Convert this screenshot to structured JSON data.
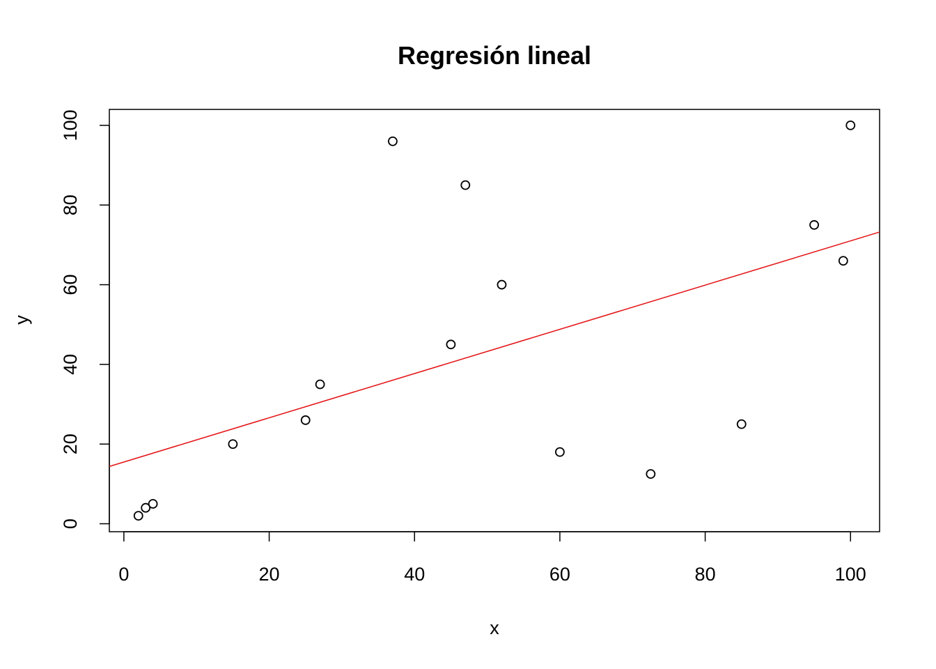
{
  "chart_data": {
    "type": "scatter",
    "title": "Regresión lineal",
    "xlabel": "x",
    "ylabel": "y",
    "xlim": [
      -2,
      104
    ],
    "ylim": [
      -2,
      104
    ],
    "x_ticks": [
      0,
      20,
      40,
      60,
      80,
      100
    ],
    "y_ticks": [
      0,
      20,
      40,
      60,
      80,
      100
    ],
    "x_tick_labels": [
      "0",
      "20",
      "40",
      "60",
      "80",
      "100"
    ],
    "y_tick_labels": [
      "0",
      "20",
      "40",
      "60",
      "80",
      "100"
    ],
    "grid": false,
    "points": {
      "x": [
        2,
        3,
        4,
        15,
        25,
        27,
        37,
        45,
        47,
        52,
        60,
        72.5,
        85,
        95,
        99,
        100
      ],
      "y": [
        2,
        4,
        5,
        20,
        26,
        35,
        96,
        45,
        85,
        60,
        18,
        12.5,
        25,
        75,
        66,
        100
      ]
    },
    "regression_line": {
      "intercept": 15.5,
      "slope": 0.555
    },
    "colors": {
      "points": "#000000",
      "regression_line": "#e41a1c",
      "frame": "#000000"
    }
  }
}
